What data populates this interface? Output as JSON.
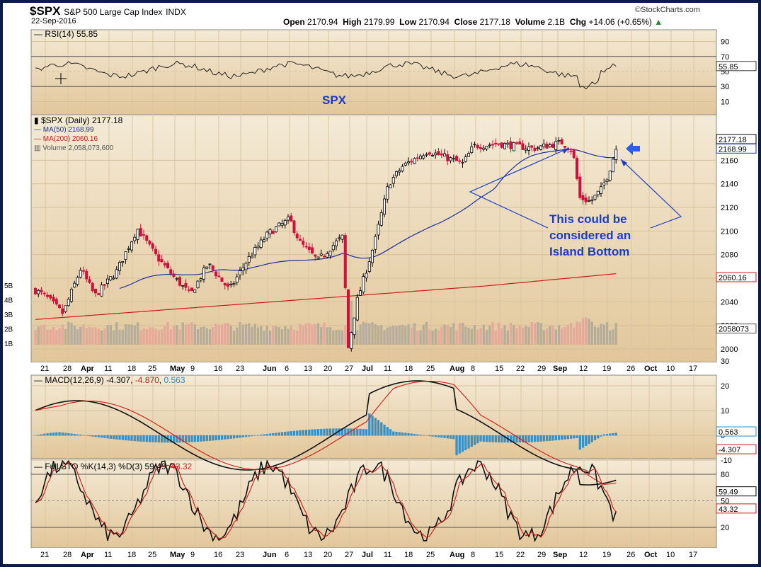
{
  "header": {
    "symbol": "$SPX",
    "name": "S&P 500 Large Cap Index",
    "exchange": "INDX",
    "date": "22-Sep-2016",
    "brand": "©StockCharts.com",
    "open_label": "Open",
    "open": "2170.94",
    "high_label": "High",
    "high": "2179.99",
    "low_label": "Low",
    "low": "2170.94",
    "close_label": "Close",
    "close": "2177.18",
    "volume_label": "Volume",
    "volume": "2.1B",
    "chg_label": "Chg",
    "chg": "+14.06 (+0.65%)"
  },
  "rsi": {
    "legend": "RSI(14) 55.85",
    "value_label": "55.85",
    "ticks": [
      "90",
      "70",
      "50",
      "30",
      "10"
    ],
    "value": 55.85
  },
  "price": {
    "legend_main": "$SPX (Daily) 2177.18",
    "legend_ma50": "MA(50) 2168.99",
    "legend_ma200": "MA(200) 2060.16",
    "legend_volume": "Volume 2,058,073,600",
    "ticks": [
      "2160",
      "2140",
      "2120",
      "2100",
      "2080",
      "2060",
      "2040",
      "2020",
      "2000"
    ],
    "vol_ticks": [
      "5B",
      "4B",
      "3B",
      "2B",
      "1B"
    ],
    "last_label": "2177.18",
    "ma50_label": "2168.99",
    "ma200_label": "2060.16",
    "vol_label": "2058073",
    "colors": {
      "up": "#000000",
      "down": "#d0103a",
      "ma50": "#1c2fa0",
      "ma200": "#d01818",
      "annot": "#1a3cc8"
    }
  },
  "annotations": {
    "spx": "SPX",
    "island_line1": "This could be",
    "island_line2": "considered an",
    "island_line3": "Island Bottom"
  },
  "macd": {
    "legend_name": "MACD(12,26,9)",
    "legend_v1": "-4.307",
    "legend_v2": "-4.870",
    "legend_v3": "0.563",
    "ticks": [
      "30",
      "20",
      "10",
      "0",
      "-10"
    ],
    "label_hist": "0.563",
    "label_macd": "-4.307"
  },
  "sto": {
    "legend_name": "Full STO %K(14,3) %D(3)",
    "legend_k": "59.49",
    "legend_d": "43.32",
    "ticks": [
      "80",
      "50",
      "20"
    ],
    "label_k": "59.49",
    "label_d": "43.32"
  },
  "xaxis": [
    "21",
    "28",
    "Apr",
    "11",
    "18",
    "25",
    "May",
    "9",
    "16",
    "23",
    "Jun",
    "6",
    "13",
    "20",
    "27",
    "Jul",
    "11",
    "18",
    "25",
    "Aug",
    "8",
    "15",
    "22",
    "29",
    "Sep",
    "12",
    "19",
    "26",
    "Oct",
    "10",
    "17"
  ],
  "chart_data": {
    "type": "candlestick",
    "title": "$SPX S&P 500 Large Cap Index INDX",
    "x_range": [
      "2016-03-21",
      "2016-10-17"
    ],
    "ylim": [
      1990,
      2185
    ],
    "monthly_approx_close": [
      {
        "date": "2016-03-22",
        "close": 2049
      },
      {
        "date": "2016-04-20",
        "close": 2102
      },
      {
        "date": "2016-05-19",
        "close": 2041
      },
      {
        "date": "2016-06-08",
        "close": 2112
      },
      {
        "date": "2016-06-27",
        "close": 2001
      },
      {
        "date": "2016-07-15",
        "close": 2162
      },
      {
        "date": "2016-08-15",
        "close": 2190
      },
      {
        "date": "2016-09-09",
        "close": 2128
      },
      {
        "date": "2016-09-22",
        "close": 2177.18
      }
    ],
    "rsi_ylim": [
      0,
      100
    ],
    "macd_ylim": [
      -15,
      30
    ],
    "sto_ylim": [
      0,
      100
    ]
  }
}
